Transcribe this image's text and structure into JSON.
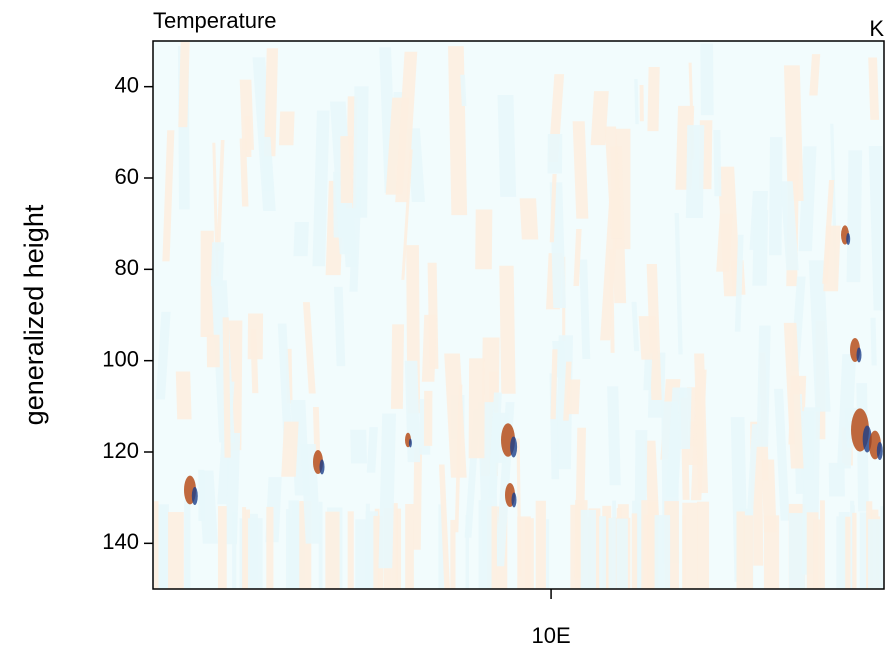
{
  "chart_data": {
    "type": "heatmap",
    "title": "Temperature",
    "units": "K",
    "ylabel": "generalized height",
    "ylim": [
      30,
      150
    ],
    "y_reversed": true,
    "yticks": [
      40,
      60,
      80,
      100,
      120,
      140
    ],
    "xlim": [
      4.5,
      14.6
    ],
    "xticks": [
      {
        "value": 10,
        "label": "10E"
      }
    ]
  }
}
